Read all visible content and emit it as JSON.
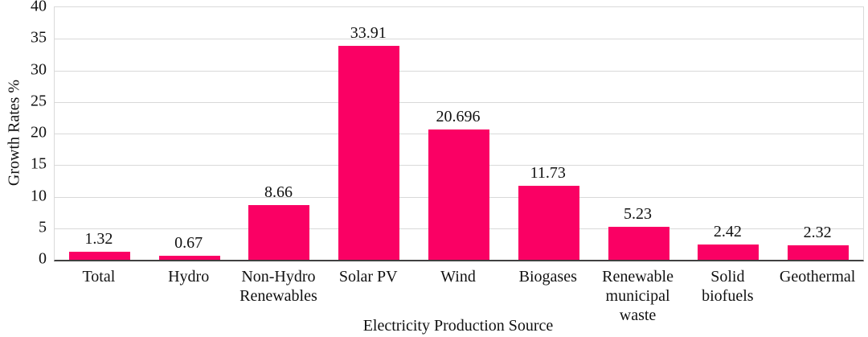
{
  "chart_data": {
    "type": "bar",
    "title": "",
    "xlabel": "Electricity Production Source",
    "ylabel": "Growth Rates %",
    "categories": [
      "Total",
      "Hydro",
      "Non-Hydro Renewables",
      "Solar PV",
      "Wind",
      "Biogases",
      "Renewable municipal waste",
      "Solid biofuels",
      "Geothermal"
    ],
    "categories_display": [
      "Total",
      "Hydro",
      "Non-Hydro\nRenewables",
      "Solar PV",
      "Wind",
      "Biogases",
      "Renewable\nmunicipal\nwaste",
      "Solid\nbiofuels",
      "Geothermal"
    ],
    "values": [
      1.32,
      0.67,
      8.66,
      33.91,
      20.696,
      11.73,
      5.23,
      2.42,
      2.32
    ],
    "value_labels": [
      "1.32",
      "0.67",
      "8.66",
      "33.91",
      "20.696",
      "11.73",
      "5.23",
      "2.42",
      "2.32"
    ],
    "ylim": [
      0,
      40
    ],
    "yticks": [
      0,
      5,
      10,
      15,
      20,
      25,
      30,
      35,
      40
    ],
    "grid": true,
    "legend": false,
    "colors": {
      "bar": "#FA0064",
      "gridline": "#D9D9D9",
      "axis": "#404040",
      "text": "#111111"
    }
  }
}
